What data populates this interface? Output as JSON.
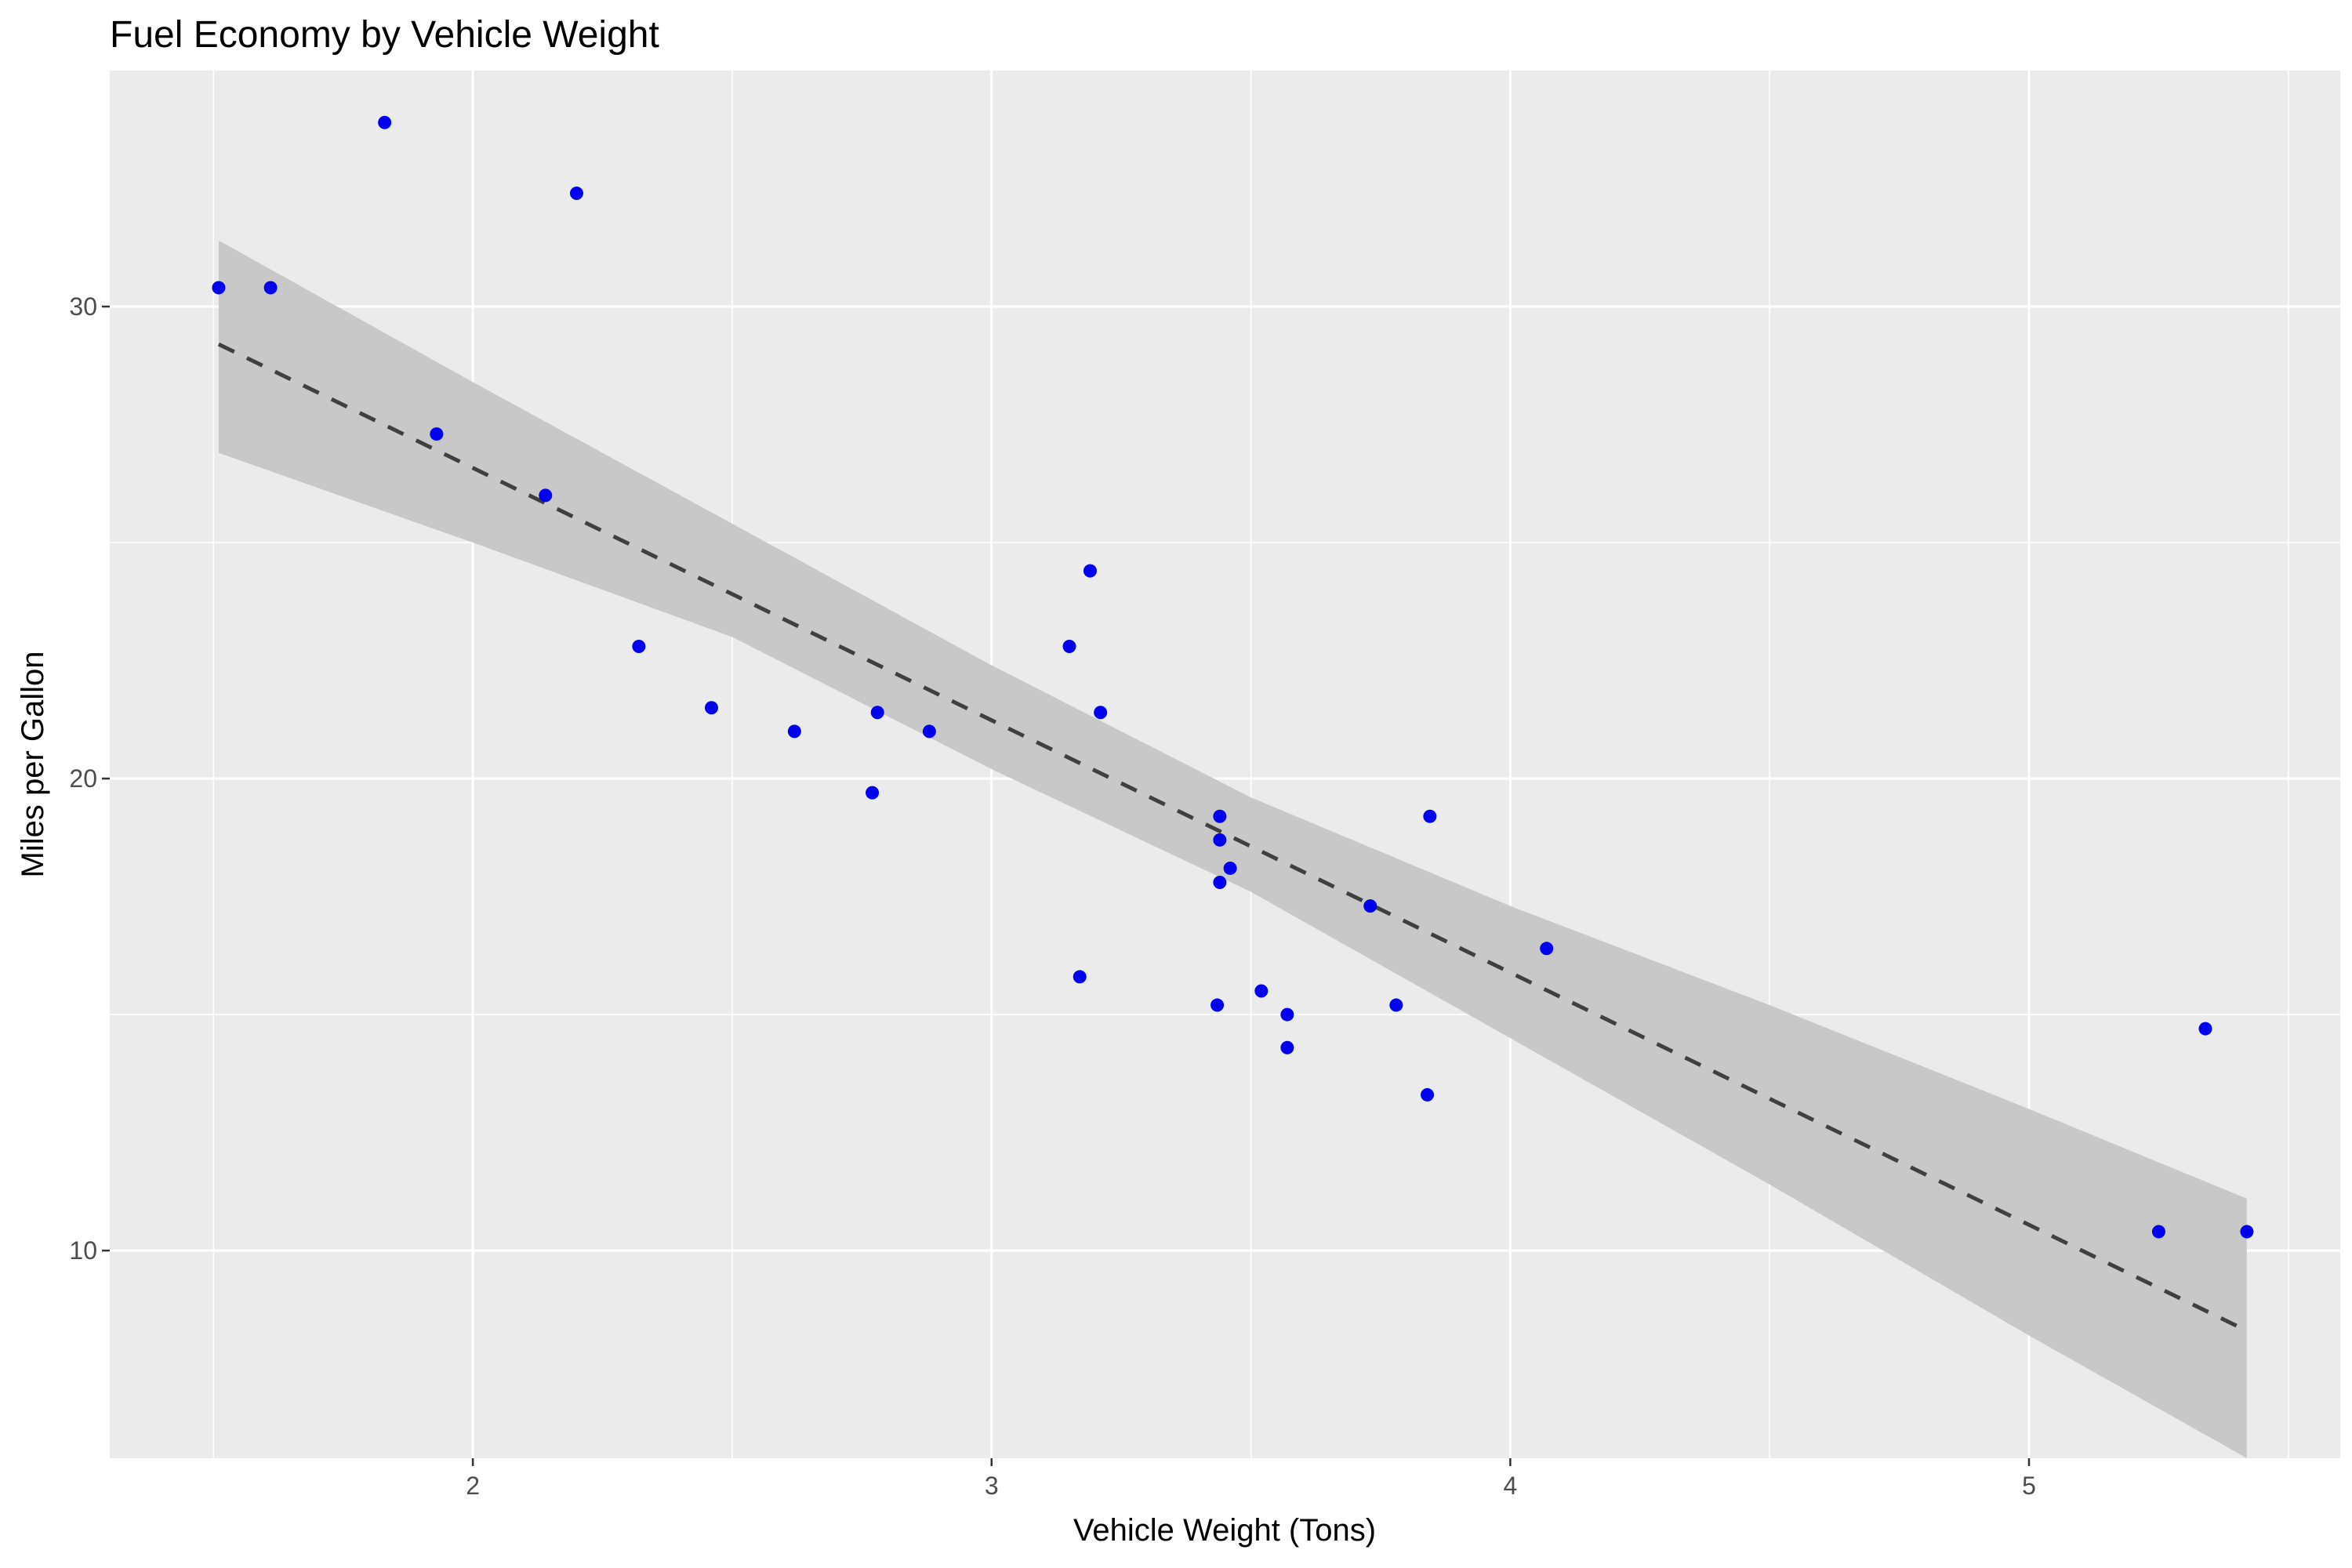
{
  "chart_data": {
    "type": "scatter",
    "title": "Fuel Economy by Vehicle Weight",
    "xlabel": "Vehicle Weight (Tons)",
    "ylabel": "Miles per Gallon",
    "xlim": [
      1.3,
      5.6
    ],
    "ylim": [
      5.6,
      35.0
    ],
    "x_ticks": [
      2,
      3,
      4,
      5
    ],
    "y_ticks": [
      10,
      20,
      30
    ],
    "grid": true,
    "legend": "none",
    "point_color": "#0000ee",
    "panel_color": "#ebebeb",
    "gridline_color": "#ffffff",
    "ribbon_color": "#c8c8c8",
    "fit_line_color": "#404040",
    "points": [
      {
        "x": 1.51,
        "y": 30.4
      },
      {
        "x": 1.61,
        "y": 30.4
      },
      {
        "x": 1.83,
        "y": 33.9
      },
      {
        "x": 1.93,
        "y": 27.3
      },
      {
        "x": 2.14,
        "y": 26.0
      },
      {
        "x": 2.2,
        "y": 32.4
      },
      {
        "x": 2.32,
        "y": 22.8
      },
      {
        "x": 2.46,
        "y": 21.5
      },
      {
        "x": 2.62,
        "y": 21.0
      },
      {
        "x": 2.77,
        "y": 19.7
      },
      {
        "x": 2.78,
        "y": 21.4
      },
      {
        "x": 2.88,
        "y": 21.0
      },
      {
        "x": 3.15,
        "y": 22.8
      },
      {
        "x": 3.17,
        "y": 15.8
      },
      {
        "x": 3.19,
        "y": 24.4
      },
      {
        "x": 3.21,
        "y": 21.4
      },
      {
        "x": 3.44,
        "y": 18.7
      },
      {
        "x": 3.44,
        "y": 19.2
      },
      {
        "x": 3.44,
        "y": 17.8
      },
      {
        "x": 3.46,
        "y": 18.1
      },
      {
        "x": 3.435,
        "y": 15.2
      },
      {
        "x": 3.52,
        "y": 15.5
      },
      {
        "x": 3.57,
        "y": 14.3
      },
      {
        "x": 3.57,
        "y": 15.0
      },
      {
        "x": 3.73,
        "y": 17.3
      },
      {
        "x": 3.78,
        "y": 15.2
      },
      {
        "x": 3.84,
        "y": 13.3
      },
      {
        "x": 3.845,
        "y": 19.2
      },
      {
        "x": 4.07,
        "y": 16.4
      },
      {
        "x": 5.25,
        "y": 10.4
      },
      {
        "x": 5.34,
        "y": 14.7
      },
      {
        "x": 5.42,
        "y": 10.4
      }
    ],
    "fit_line": {
      "x": [
        1.51,
        5.42
      ],
      "y": [
        29.2,
        8.3
      ]
    },
    "confidence_band": {
      "x": [
        1.51,
        2.0,
        2.5,
        3.0,
        3.5,
        4.0,
        4.5,
        5.0,
        5.42
      ],
      "upper": [
        31.4,
        28.4,
        25.4,
        22.4,
        19.6,
        17.3,
        15.2,
        13.0,
        11.1
      ],
      "lower": [
        26.9,
        25.0,
        23.0,
        20.2,
        17.6,
        14.5,
        11.4,
        8.2,
        5.6
      ]
    }
  }
}
